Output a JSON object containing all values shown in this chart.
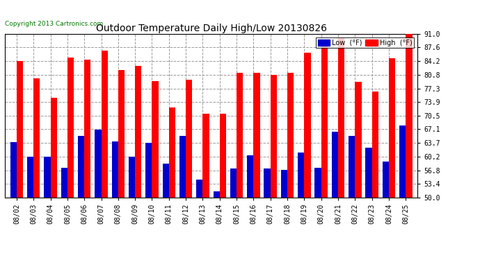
{
  "title": "Outdoor Temperature Daily High/Low 20130826",
  "copyright": "Copyright 2013 Cartronics.com",
  "dates": [
    "08/02",
    "08/03",
    "08/04",
    "08/05",
    "08/06",
    "08/07",
    "08/08",
    "08/09",
    "08/10",
    "08/11",
    "08/12",
    "08/13",
    "08/14",
    "08/15",
    "08/16",
    "08/17",
    "08/18",
    "08/19",
    "08/20",
    "08/21",
    "08/22",
    "08/23",
    "08/24",
    "08/25"
  ],
  "highs": [
    84.2,
    79.9,
    75.0,
    85.0,
    84.5,
    86.8,
    82.0,
    83.0,
    79.2,
    72.5,
    79.5,
    71.0,
    71.0,
    81.3,
    81.2,
    80.8,
    81.3,
    86.3,
    88.0,
    90.0,
    79.0,
    76.5,
    84.8,
    91.0
  ],
  "lows": [
    63.8,
    60.3,
    60.2,
    57.5,
    65.5,
    67.0,
    64.0,
    60.3,
    63.7,
    58.5,
    65.5,
    54.5,
    51.5,
    57.3,
    60.5,
    57.3,
    57.0,
    61.3,
    57.5,
    66.5,
    65.5,
    62.5,
    59.0,
    68.0
  ],
  "high_color": "#ff0000",
  "low_color": "#0000cc",
  "bg_color": "#ffffff",
  "plot_bg_color": "#ffffff",
  "grid_color": "#999999",
  "title_color": "#000000",
  "copyright_color": "#007700",
  "yticks": [
    50.0,
    53.4,
    56.8,
    60.2,
    63.7,
    67.1,
    70.5,
    73.9,
    77.3,
    80.8,
    84.2,
    87.6,
    91.0
  ],
  "ylim": [
    50.0,
    91.0
  ],
  "bar_width": 0.38
}
